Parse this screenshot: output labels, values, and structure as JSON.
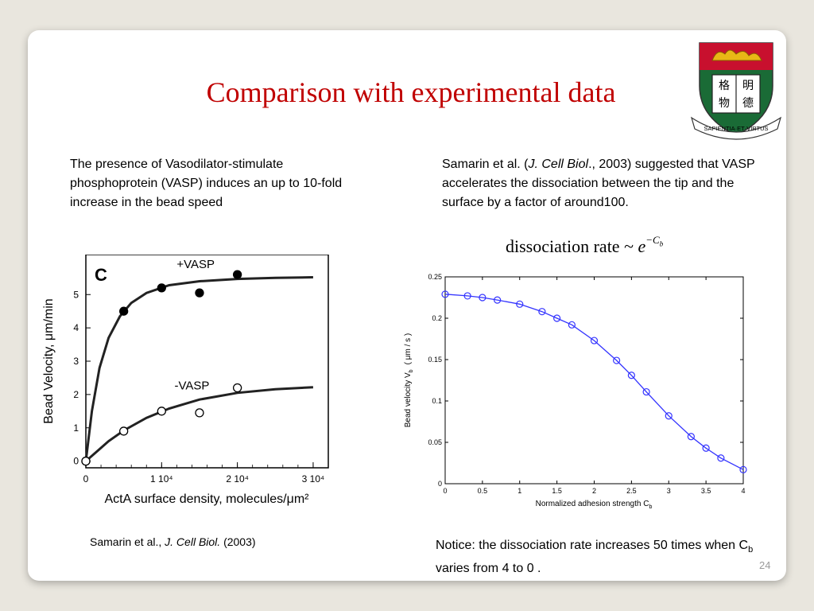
{
  "slide": {
    "title": "Comparison with experimental data",
    "left_text": "The presence of Vasodilator-stimulate phosphoprotein  (VASP) induces an up to 10-fold increase in the bead speed",
    "right_text": {
      "pre": "Samarin et al. (",
      "journal": "J. Cell Biol",
      "post": "., 2003) suggested that VASP accelerates the dissociation between the tip and the surface by a factor of around100."
    },
    "formula": {
      "text": "dissociation rate ~ ",
      "base": "e",
      "exp": "−C",
      "exp_sub": "b"
    },
    "left_citation": {
      "pre": "Samarin et al., ",
      "journal": "J. Cell Biol.",
      "post": " (2003)"
    },
    "notice": {
      "pre": "Notice: the dissociation rate increases 50 times when C",
      "sub": "b",
      "post": " varies from 4 to 0 ."
    },
    "page_number": "24",
    "logo": {
      "motto": "SAPIENTIA·ET·VIRTUS",
      "book_chars": [
        "格",
        "明",
        "物",
        "德"
      ]
    }
  },
  "chart_data": [
    {
      "type": "scatter",
      "panel_label": "C",
      "xlabel": "ActA surface density, molecules/μm²",
      "ylabel": "Bead Velocity, μm/min",
      "xlim": [
        0,
        32000
      ],
      "ylim": [
        -0.2,
        6.2
      ],
      "x_ticks": [
        0,
        10000,
        20000,
        30000
      ],
      "x_tick_labels": [
        "0",
        "1 10⁴",
        "2 10⁴",
        "3 10⁴"
      ],
      "y_ticks": [
        0,
        1,
        2,
        3,
        4,
        5
      ],
      "y_tick_labels": [
        "0",
        "1",
        "2",
        "3",
        "4",
        "5"
      ],
      "series": [
        {
          "name": "+VASP",
          "marker": "filled",
          "points": [
            [
              0,
              0
            ],
            [
              5000,
              4.5
            ],
            [
              10000,
              5.2
            ],
            [
              15000,
              5.05
            ],
            [
              20000,
              5.6
            ]
          ],
          "fit": [
            [
              0,
              0
            ],
            [
              800,
              1.5
            ],
            [
              1800,
              2.8
            ],
            [
              3000,
              3.7
            ],
            [
              4500,
              4.35
            ],
            [
              6000,
              4.75
            ],
            [
              8000,
              5.05
            ],
            [
              11000,
              5.28
            ],
            [
              15000,
              5.4
            ],
            [
              20000,
              5.47
            ],
            [
              25000,
              5.5
            ],
            [
              30000,
              5.52
            ]
          ]
        },
        {
          "name": "-VASP",
          "marker": "open",
          "points": [
            [
              0,
              0
            ],
            [
              5000,
              0.9
            ],
            [
              10000,
              1.5
            ],
            [
              15000,
              1.45
            ],
            [
              20000,
              2.2
            ]
          ],
          "fit": [
            [
              0,
              0
            ],
            [
              1500,
              0.3
            ],
            [
              3000,
              0.6
            ],
            [
              5000,
              0.92
            ],
            [
              8000,
              1.3
            ],
            [
              11000,
              1.58
            ],
            [
              15000,
              1.85
            ],
            [
              20000,
              2.05
            ],
            [
              25000,
              2.16
            ],
            [
              30000,
              2.22
            ]
          ]
        }
      ],
      "annotations": [
        {
          "text": "+VASP",
          "x": 14500,
          "y": 5.8
        },
        {
          "text": "-VASP",
          "x": 14000,
          "y": 2.15
        }
      ]
    },
    {
      "type": "line",
      "xlabel": "Normalized adhesion strength C",
      "xlabel_sub": "b",
      "ylabel": "Bead velocity V",
      "ylabel_sub": "b",
      "ylabel_unit": "( μm / s )",
      "xlim": [
        0,
        4
      ],
      "ylim": [
        0,
        0.25
      ],
      "x_ticks": [
        0,
        0.5,
        1,
        1.5,
        2,
        2.5,
        3,
        3.5,
        4
      ],
      "x_tick_labels": [
        "0",
        "0.5",
        "1",
        "1.5",
        "2",
        "2.5",
        "3",
        "3.5",
        "4"
      ],
      "y_ticks": [
        0,
        0.05,
        0.1,
        0.15,
        0.2,
        0.25
      ],
      "y_tick_labels": [
        "0",
        "0.05",
        "0.1",
        "0.15",
        "0.2",
        "0.25"
      ],
      "color": "#3333ff",
      "x": [
        0,
        0.3,
        0.5,
        0.7,
        1.0,
        1.3,
        1.5,
        1.7,
        2.0,
        2.3,
        2.5,
        2.7,
        3.0,
        3.3,
        3.5,
        3.7,
        4.0
      ],
      "y": [
        0.229,
        0.227,
        0.225,
        0.222,
        0.217,
        0.208,
        0.2,
        0.192,
        0.173,
        0.149,
        0.131,
        0.111,
        0.082,
        0.057,
        0.043,
        0.031,
        0.017
      ]
    }
  ]
}
